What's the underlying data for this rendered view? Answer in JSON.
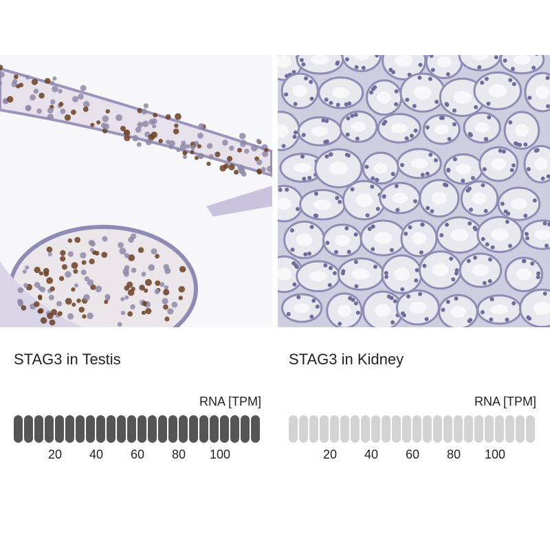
{
  "panels": [
    {
      "title": "STAG3 in Testis",
      "tissue": "testis",
      "rna_label": "RNA [TPM]",
      "filled_fraction": 1.0,
      "bar_color": "#555555",
      "empty_color": "#d3d3d3",
      "ticks": [
        "20",
        "40",
        "60",
        "80",
        "100"
      ]
    },
    {
      "title": "STAG3 in Kidney",
      "tissue": "kidney",
      "rna_label": "RNA [TPM]",
      "filled_fraction": 0.0,
      "bar_color": "#555555",
      "empty_color": "#d3d3d3",
      "ticks": [
        "20",
        "40",
        "60",
        "80",
        "100"
      ]
    }
  ]
}
